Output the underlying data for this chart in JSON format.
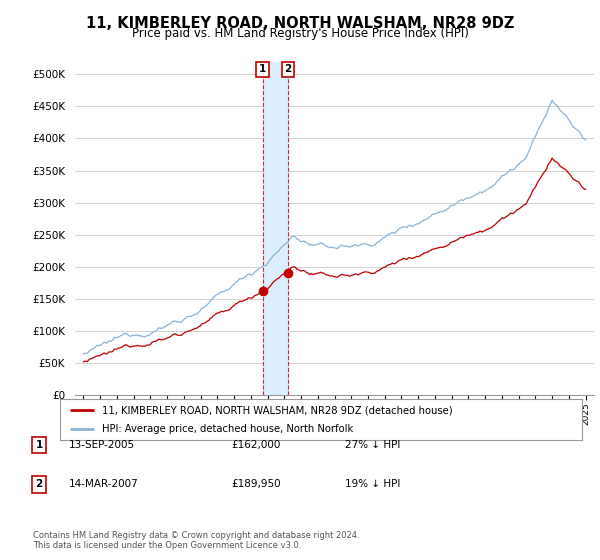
{
  "title": "11, KIMBERLEY ROAD, NORTH WALSHAM, NR28 9DZ",
  "subtitle": "Price paid vs. HM Land Registry's House Price Index (HPI)",
  "ylabel_ticks": [
    "£0",
    "£50K",
    "£100K",
    "£150K",
    "£200K",
    "£250K",
    "£300K",
    "£350K",
    "£400K",
    "£450K",
    "£500K"
  ],
  "ytick_values": [
    0,
    50000,
    100000,
    150000,
    200000,
    250000,
    300000,
    350000,
    400000,
    450000,
    500000
  ],
  "ylim": [
    0,
    520000
  ],
  "xlim_start": 1994.5,
  "xlim_end": 2025.5,
  "hpi_color": "#8ab4d8",
  "price_color": "#c00000",
  "sale1_date": 2005.71,
  "sale1_price": 162000,
  "sale2_date": 2007.21,
  "sale2_price": 189950,
  "legend_label1": "11, KIMBERLEY ROAD, NORTH WALSHAM, NR28 9DZ (detached house)",
  "legend_label2": "HPI: Average price, detached house, North Norfolk",
  "table_row1": [
    "1",
    "13-SEP-2005",
    "£162,000",
    "27% ↓ HPI"
  ],
  "table_row2": [
    "2",
    "14-MAR-2007",
    "£189,950",
    "19% ↓ HPI"
  ],
  "footnote": "Contains HM Land Registry data © Crown copyright and database right 2024.\nThis data is licensed under the Open Government Licence v3.0.",
  "background_color": "#ffffff",
  "grid_color": "#cccccc",
  "span_color": "#ddeeff"
}
